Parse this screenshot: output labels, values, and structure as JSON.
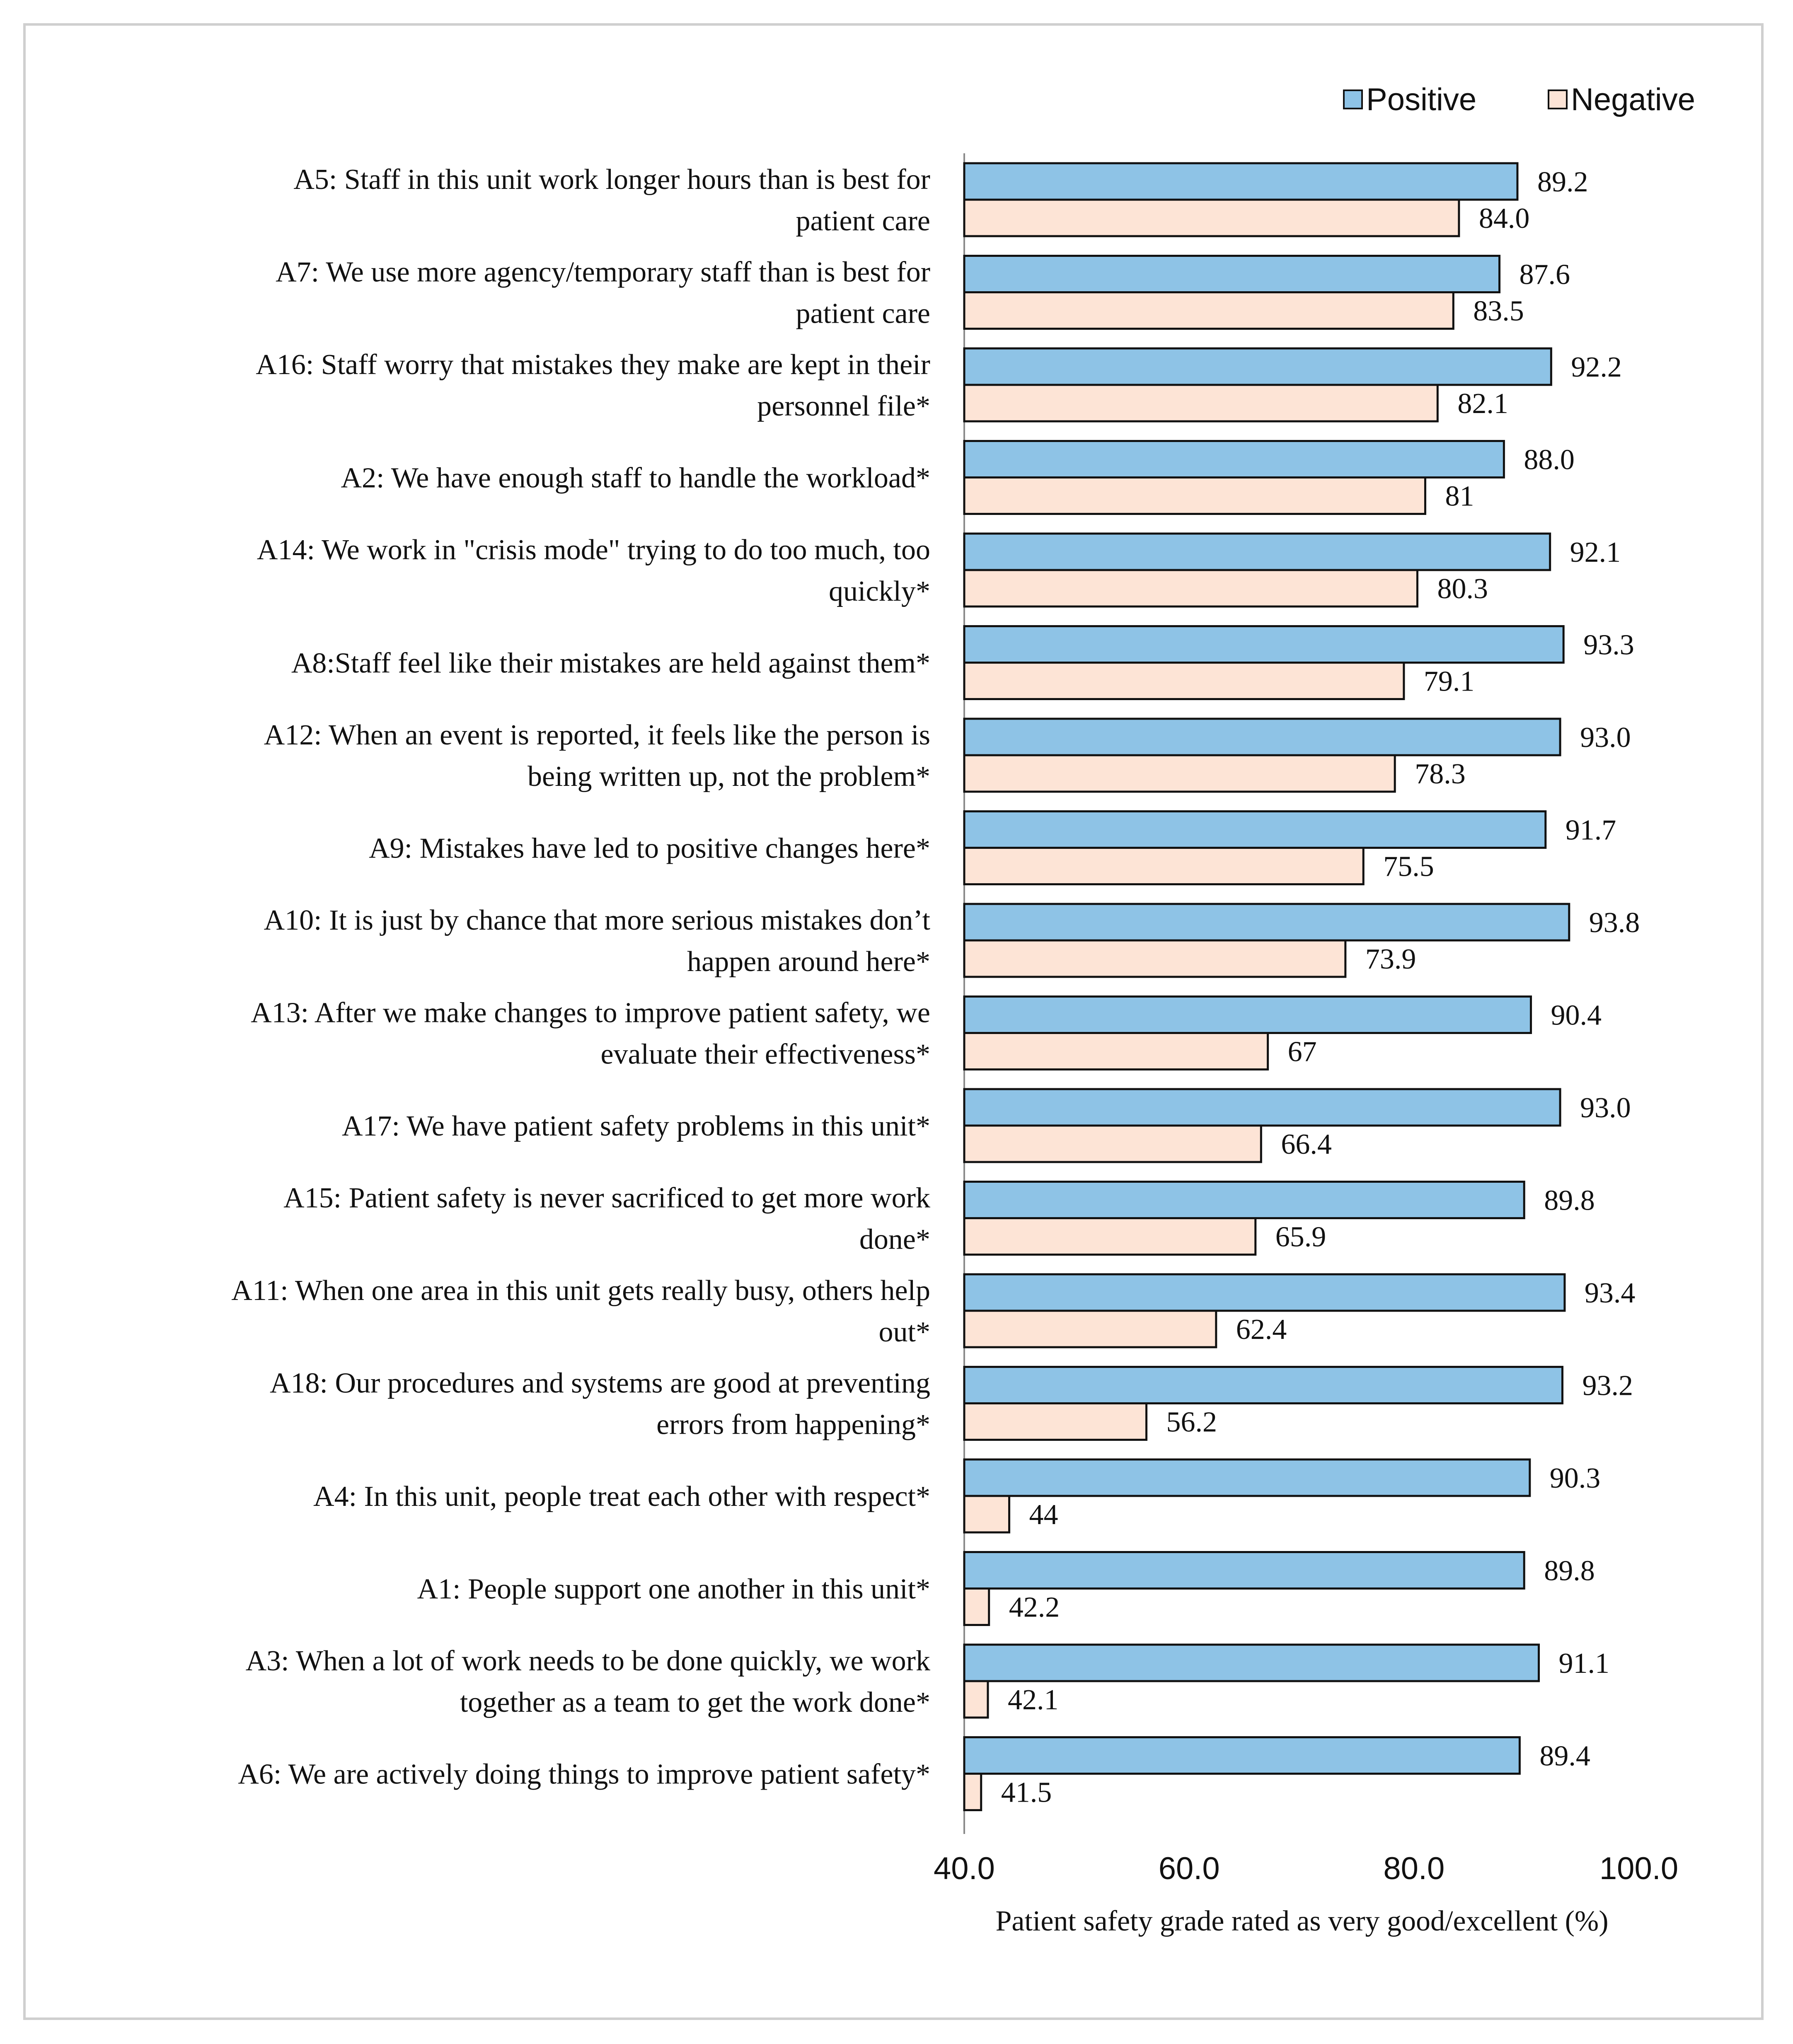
{
  "chart_data": {
    "type": "bar",
    "orientation": "horizontal",
    "xlabel": "Patient safety grade rated as very good/excellent (%)",
    "ylabel": "",
    "xlim": [
      40.0,
      100.0
    ],
    "xticks": [
      "40.0",
      "60.0",
      "80.0",
      "100.0"
    ],
    "grid": false,
    "legend_position": "top-right",
    "colors": {
      "Positive": "#8ec3e6",
      "Negative": "#fde4d6",
      "edge": "#111111"
    },
    "categories": [
      [
        "A5: Staff in this unit work longer hours than is best for",
        "patient care"
      ],
      [
        "A7: We use more agency/temporary staff than is best for",
        "patient care"
      ],
      [
        "A16: Staff worry that mistakes they make are kept in their",
        "personnel file*"
      ],
      [
        "A2: We have enough staff to handle the workload*"
      ],
      [
        "A14: We work in \"crisis mode\" trying to do too much, too",
        "quickly*"
      ],
      [
        "A8:Staff feel like their mistakes are held against them*"
      ],
      [
        "A12: When an event is reported, it feels like the person is",
        "being written up, not the problem*"
      ],
      [
        "A9: Mistakes have led to positive changes here*"
      ],
      [
        "A10: It is just by chance that more serious mistakes don’t",
        "happen around here*"
      ],
      [
        "A13: After we make changes to improve patient safety, we",
        "evaluate their effectiveness*"
      ],
      [
        "A17: We have patient safety problems in this unit*"
      ],
      [
        "A15: Patient safety is never sacrificed to get more work",
        "done*"
      ],
      [
        "A11: When one area in this unit gets really busy, others help",
        "out*"
      ],
      [
        "A18: Our procedures and systems are good at preventing",
        "errors from happening*"
      ],
      [
        "A4: In this unit, people treat each other with respect*"
      ],
      [
        "A1: People support one another in this unit*"
      ],
      [
        "A3: When a lot of work needs to be done quickly, we work",
        "together as a team to get the work done*"
      ],
      [
        "A6: We are actively doing things to improve patient safety*"
      ]
    ],
    "series": [
      {
        "name": "Positive",
        "values": [
          89.2,
          87.6,
          92.2,
          88.0,
          92.1,
          93.3,
          93.0,
          91.7,
          93.8,
          90.4,
          93.0,
          89.8,
          93.4,
          93.2,
          90.3,
          89.8,
          91.1,
          89.4
        ],
        "labels": [
          "89.2",
          "87.6",
          "92.2",
          "88.0",
          "92.1",
          "93.3",
          "93.0",
          "91.7",
          "93.8",
          "90.4",
          "93.0",
          "89.8",
          "93.4",
          "93.2",
          "90.3",
          "89.8",
          "91.1",
          "89.4"
        ]
      },
      {
        "name": "Negative",
        "values": [
          84.0,
          83.5,
          82.1,
          81,
          80.3,
          79.1,
          78.3,
          75.5,
          73.9,
          67,
          66.4,
          65.9,
          62.4,
          56.2,
          44,
          42.2,
          42.1,
          41.5
        ],
        "labels": [
          "84.0",
          "83.5",
          "82.1",
          "81",
          "80.3",
          "79.1",
          "78.3",
          "75.5",
          "73.9",
          "67",
          "66.4",
          "65.9",
          "62.4",
          "56.2",
          "44",
          "42.2",
          "42.1",
          "41.5"
        ]
      }
    ]
  }
}
